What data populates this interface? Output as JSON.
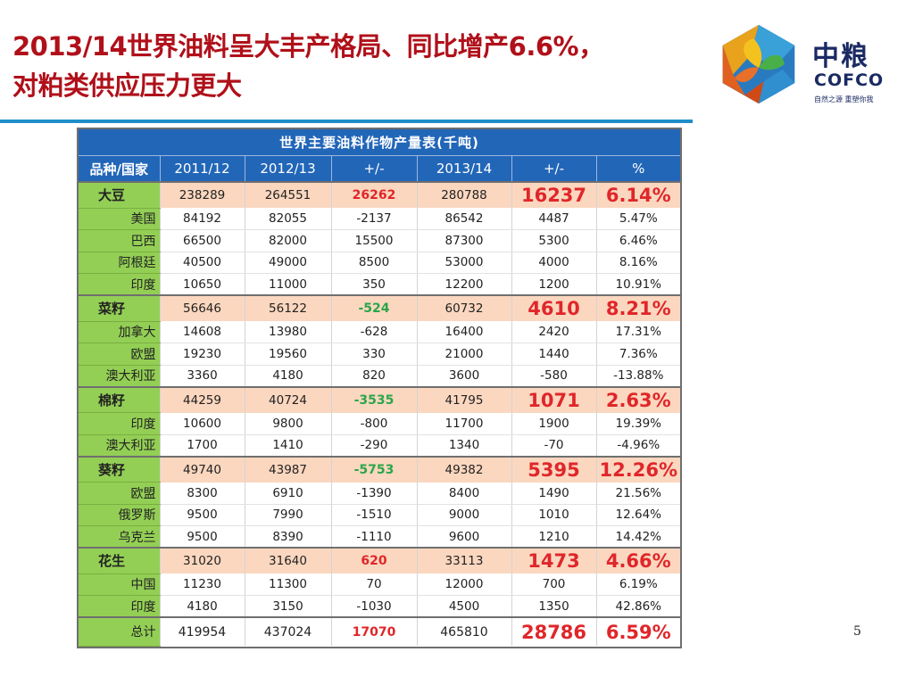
{
  "slide": {
    "title_line1": "2013/14世界油料呈大丰产格局、同比增产6.6%，",
    "title_line2": "对粕类供应压力更大",
    "page_number": "5"
  },
  "logo": {
    "cn": "中粮",
    "en": "COFCO",
    "slogan": "自然之源 重塑你我",
    "colors": [
      "#e8a21c",
      "#2a7ac0",
      "#3aa63a",
      "#e06020",
      "#1a2a63"
    ]
  },
  "table": {
    "caption": "世界主要油料作物产量表(千吨)",
    "headers": [
      "品种/国家",
      "2011/12",
      "2012/13",
      "+/-",
      "2013/14",
      "+/-",
      "%"
    ],
    "groups": [
      {
        "name": "大豆",
        "values": [
          "238289",
          "264551",
          "26262",
          "280788",
          "16237",
          "6.14%"
        ],
        "change_color": "red",
        "rows": [
          {
            "name": "美国",
            "values": [
              "84192",
              "82055",
              "-2137",
              "86542",
              "4487",
              "5.47%"
            ]
          },
          {
            "name": "巴西",
            "values": [
              "66500",
              "82000",
              "15500",
              "87300",
              "5300",
              "6.46%"
            ]
          },
          {
            "name": "阿根廷",
            "values": [
              "40500",
              "49000",
              "8500",
              "53000",
              "4000",
              "8.16%"
            ]
          },
          {
            "name": "印度",
            "values": [
              "10650",
              "11000",
              "350",
              "12200",
              "1200",
              "10.91%"
            ]
          }
        ]
      },
      {
        "name": "菜籽",
        "values": [
          "56646",
          "56122",
          "-524",
          "60732",
          "4610",
          "8.21%"
        ],
        "change_color": "green",
        "rows": [
          {
            "name": "加拿大",
            "values": [
              "14608",
              "13980",
              "-628",
              "16400",
              "2420",
              "17.31%"
            ]
          },
          {
            "name": "欧盟",
            "values": [
              "19230",
              "19560",
              "330",
              "21000",
              "1440",
              "7.36%"
            ]
          },
          {
            "name": "澳大利亚",
            "values": [
              "3360",
              "4180",
              "820",
              "3600",
              "-580",
              "-13.88%"
            ]
          }
        ]
      },
      {
        "name": "棉籽",
        "values": [
          "44259",
          "40724",
          "-3535",
          "41795",
          "1071",
          "2.63%"
        ],
        "change_color": "green",
        "rows": [
          {
            "name": "印度",
            "values": [
              "10600",
              "9800",
              "-800",
              "11700",
              "1900",
              "19.39%"
            ]
          },
          {
            "name": "澳大利亚",
            "values": [
              "1700",
              "1410",
              "-290",
              "1340",
              "-70",
              "-4.96%"
            ]
          }
        ]
      },
      {
        "name": "葵籽",
        "values": [
          "49740",
          "43987",
          "-5753",
          "49382",
          "5395",
          "12.26%"
        ],
        "change_color": "green",
        "rows": [
          {
            "name": "欧盟",
            "values": [
              "8300",
              "6910",
              "-1390",
              "8400",
              "1490",
              "21.56%"
            ]
          },
          {
            "name": "俄罗斯",
            "values": [
              "9500",
              "7990",
              "-1510",
              "9000",
              "1010",
              "12.64%"
            ]
          },
          {
            "name": "乌克兰",
            "values": [
              "9500",
              "8390",
              "-1110",
              "9600",
              "1210",
              "14.42%"
            ]
          }
        ]
      },
      {
        "name": "花生",
        "values": [
          "31020",
          "31640",
          "620",
          "33113",
          "1473",
          "4.66%"
        ],
        "change_color": "red",
        "rows": [
          {
            "name": "中国",
            "values": [
              "11230",
              "11300",
              "70",
              "12000",
              "700",
              "6.19%"
            ]
          },
          {
            "name": "印度",
            "values": [
              "4180",
              "3150",
              "-1030",
              "4500",
              "1350",
              "42.86%"
            ]
          }
        ]
      }
    ],
    "total": {
      "name": "总计",
      "values": [
        "419954",
        "437024",
        "17070",
        "465810",
        "28786",
        "6.59%"
      ],
      "change_color": "red"
    }
  }
}
